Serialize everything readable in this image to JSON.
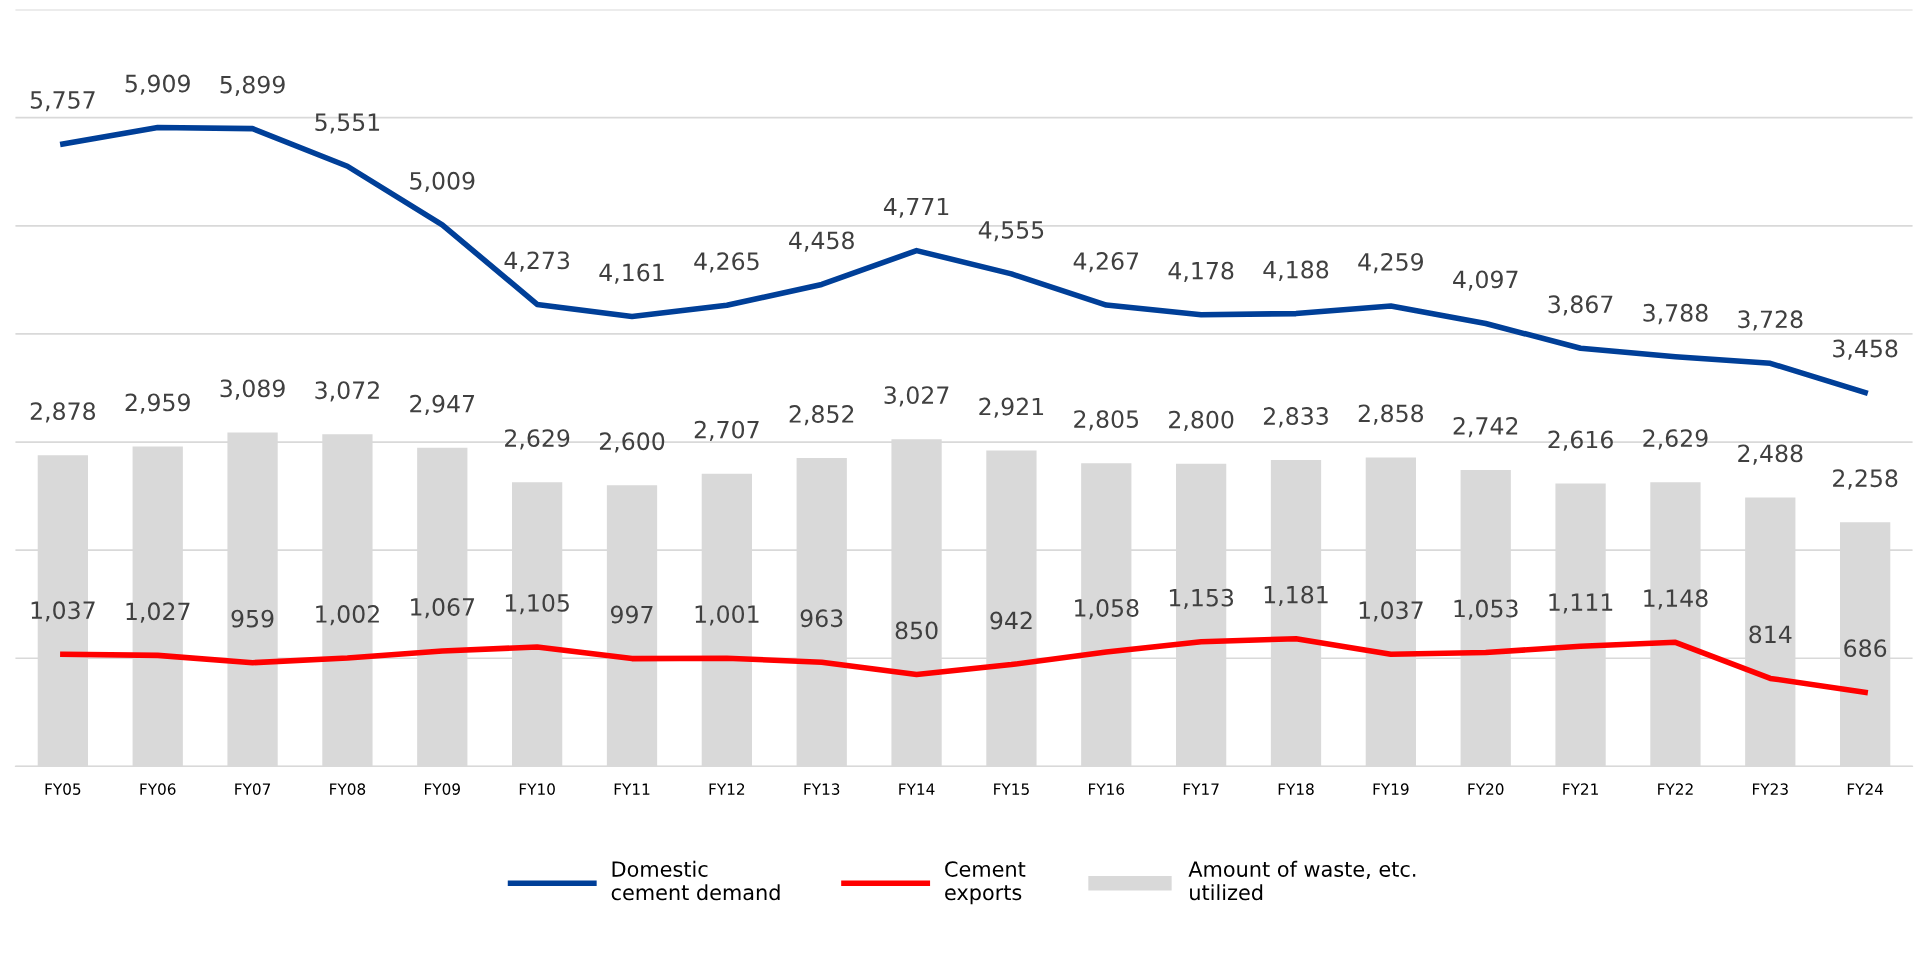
{
  "chart_data": {
    "type": "line",
    "categories": [
      "FY05",
      "FY06",
      "FY07",
      "FY08",
      "FY09",
      "FY10",
      "FY11",
      "FY12",
      "FY13",
      "FY14",
      "FY15",
      "FY16",
      "FY17",
      "FY18",
      "FY19",
      "FY20",
      "FY21",
      "FY22",
      "FY23",
      "FY24"
    ],
    "series": [
      {
        "name": "Domestic\ncement demand",
        "color": "#003f98",
        "values": [
          5757,
          5909,
          5899,
          5551,
          5009,
          4273,
          4161,
          4265,
          4458,
          4771,
          4555,
          4267,
          4178,
          4188,
          4259,
          4097,
          3867,
          3788,
          3728,
          3458
        ],
        "value_labels": [
          "5,757",
          "5,909",
          "5,899",
          "5,551",
          "5,009",
          "4,273",
          "4,161",
          "4,265",
          "4,458",
          "4,771",
          "4,555",
          "4,267",
          "4,178",
          "4,188",
          "4,259",
          "4,097",
          "3,867",
          "3,788",
          "3,728",
          "3,458"
        ]
      },
      {
        "name": "Cement\nexports",
        "color": "#ff0000",
        "values": [
          1037,
          1027,
          959,
          1002,
          1067,
          1105,
          997,
          1001,
          963,
          850,
          942,
          1058,
          1153,
          1181,
          1037,
          1053,
          1111,
          1148,
          814,
          686
        ],
        "value_labels": [
          "1,037",
          "1,027",
          "959",
          "1,002",
          "1,067",
          "1,105",
          "997",
          "1,001",
          "963",
          "850",
          "942",
          "1,058",
          "1,153",
          "1,181",
          "1,037",
          "1,053",
          "1,111",
          "1,148",
          "814",
          "686"
        ]
      },
      {
        "name": "Amount of waste, etc.\nutilized",
        "type": "bar",
        "color": "#d9d9d9",
        "values": [
          2878,
          2959,
          3089,
          3072,
          2947,
          2629,
          2600,
          2707,
          2852,
          3027,
          2921,
          2805,
          2800,
          2833,
          2858,
          2742,
          2616,
          2629,
          2488,
          2258
        ],
        "value_labels": [
          "2,878",
          "2,959",
          "3,089",
          "3,072",
          "2,947",
          "2,629",
          "2,600",
          "2,707",
          "2,852",
          "3,027",
          "2,921",
          "2,805",
          "2,800",
          "2,833",
          "2,858",
          "2,742",
          "2,616",
          "2,629",
          "2,488",
          "2,258"
        ]
      }
    ],
    "ylim": [
      0,
      7000
    ],
    "yticks": [
      {
        "value": 0,
        "label": null
      },
      {
        "value": 1000,
        "label": null
      },
      {
        "value": 2000,
        "label": null
      },
      {
        "value": 3000,
        "label": null
      },
      {
        "value": 4000,
        "label": null
      },
      {
        "value": 5000,
        "label": null
      },
      {
        "value": 6000,
        "label": null
      },
      {
        "value": 7000,
        "label": null
      }
    ],
    "tick_labels": "x",
    "grid": "y",
    "legend": "bottom",
    "marker": "none",
    "line_style": "solid"
  }
}
